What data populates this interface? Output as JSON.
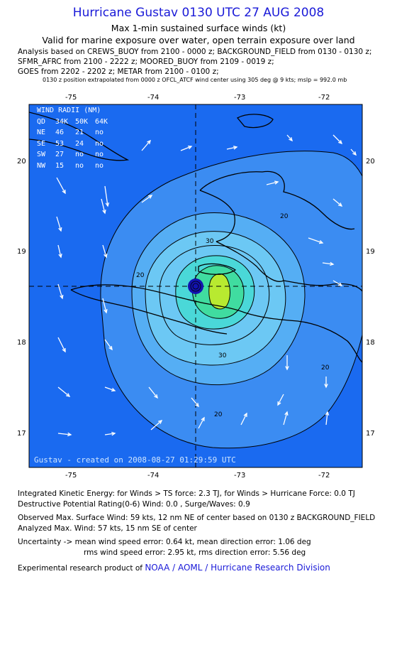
{
  "header": {
    "title": "Hurricane Gustav 0130 UTC 27 AUG 2008",
    "subtitle": "Max 1-min sustained surface winds (kt)",
    "valid": "Valid for marine exposure over water, open terrain exposure over land",
    "analysis_lines": [
      "Analysis based on  CREWS_BUOY from 2100 - 0000 z;  BACKGROUND_FIELD from 0130 - 0130 z;",
      "SFMR_AFRC from 2100 - 2222 z;  MOORED_BUOY from 2109 - 0019 z;",
      "GOES from 2202 - 2202 z;  METAR from 2100 - 0100 z;"
    ],
    "position_note": "0130 z position extrapolated from 0000 z OFCL_ATCF wind center using 305 deg @ 9 kts; mslp = 992.0 mb"
  },
  "map": {
    "lon_ticks": [
      "-75",
      "-74",
      "-73",
      "-72"
    ],
    "lat_ticks": [
      "20",
      "19",
      "18",
      "17"
    ],
    "contour_labels": [
      "20",
      "30",
      "20",
      "30",
      "20",
      "20"
    ],
    "created": "Gustav - created on 2008-08-27 01:29:59 UTC",
    "colors": {
      "ocean": "#1a6af0",
      "c20": "#3b8cf2",
      "c30": "#55aef4",
      "c40": "#6cc8f4",
      "c45": "#4ad8d8",
      "c50": "#40dca0",
      "c55": "#b8ea30",
      "arrow": "#ffffff",
      "center": "#1212b0"
    }
  },
  "wind_radii": {
    "header": [
      "QD",
      "34K",
      "50K",
      "64K"
    ],
    "title": "WIND RADII (NM)",
    "rows": [
      [
        "NE",
        "46",
        "21",
        "no"
      ],
      [
        "SE",
        "53",
        "24",
        "no"
      ],
      [
        "SW",
        "27",
        "no",
        "no"
      ],
      [
        "NW",
        "15",
        "no",
        "no"
      ]
    ]
  },
  "footer": {
    "ike": "Integrated Kinetic Energy:  for Winds > TS force: 2.3 TJ,  for Winds > Hurricane Force: 0.0 TJ",
    "dpr": "Destructive Potential Rating(0-6)   Wind: 0.0 , Surge/Waves: 0.9",
    "obs_max": "Observed Max. Surface Wind: 59 kts, 12 nm NE of center based on 0130 z BACKGROUND_FIELD",
    "analyzed_max": "Analyzed Max. Wind: 57 kts, 15 nm SE of center",
    "uncert1": "Uncertainty -> mean wind speed error: 0.64 kt,   mean direction error: 1.06 deg",
    "uncert2": "rms wind speed error: 2.95 kt,   rms direction error: 5.56 deg",
    "product_prefix": "Experimental research product of ",
    "product_link": "NOAA / AOML / Hurricane Research Division"
  }
}
